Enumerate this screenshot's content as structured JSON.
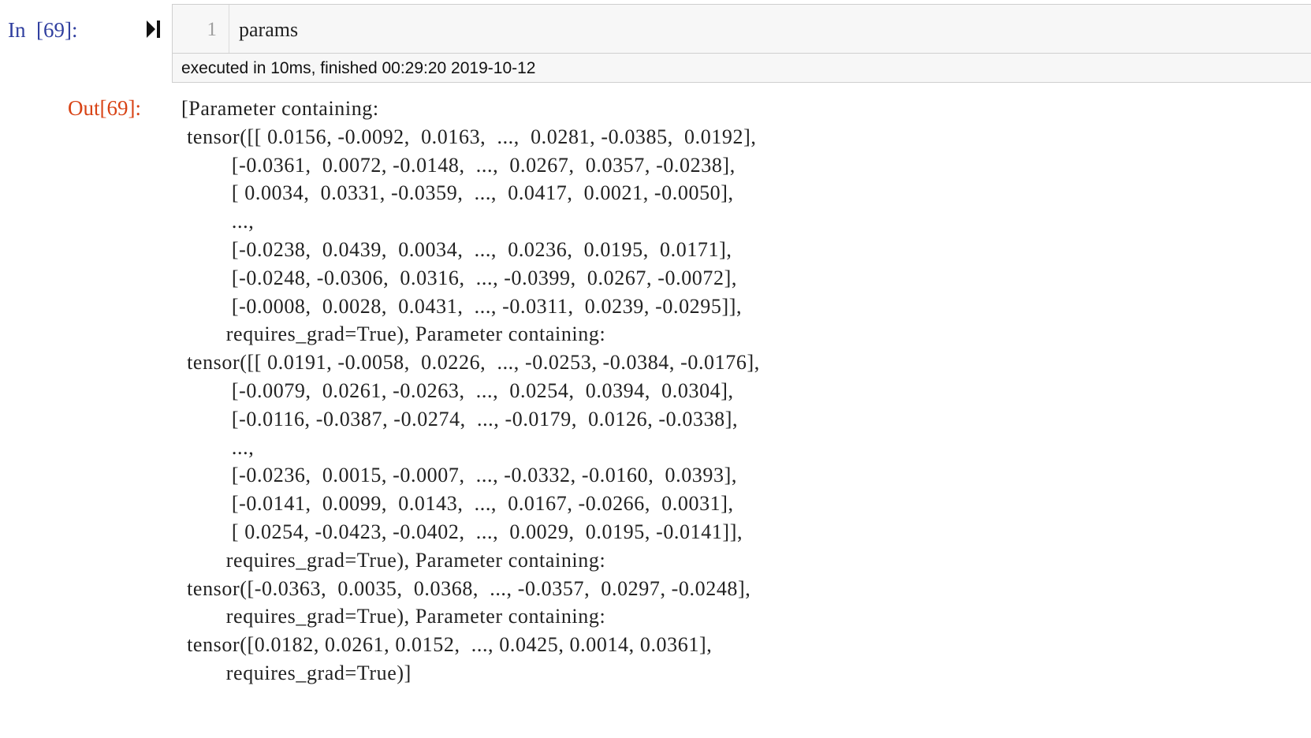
{
  "cell": {
    "in_prompt": "In  [69]:",
    "run_icon": "run-cell-icon",
    "line_number": "1",
    "code": "params",
    "execution_info": "executed in 10ms, finished 00:29:20 2019-10-12",
    "out_prompt": "Out[69]:",
    "output_lines": [
      "[Parameter containing:",
      " tensor([[ 0.0156, -0.0092,  0.0163,  ...,  0.0281, -0.0385,  0.0192],",
      "         [-0.0361,  0.0072, -0.0148,  ...,  0.0267,  0.0357, -0.0238],",
      "         [ 0.0034,  0.0331, -0.0359,  ...,  0.0417,  0.0021, -0.0050],",
      "         ...,",
      "         [-0.0238,  0.0439,  0.0034,  ...,  0.0236,  0.0195,  0.0171],",
      "         [-0.0248, -0.0306,  0.0316,  ..., -0.0399,  0.0267, -0.0072],",
      "         [-0.0008,  0.0028,  0.0431,  ..., -0.0311,  0.0239, -0.0295]],",
      "        requires_grad=True), Parameter containing:",
      " tensor([[ 0.0191, -0.0058,  0.0226,  ..., -0.0253, -0.0384, -0.0176],",
      "         [-0.0079,  0.0261, -0.0263,  ...,  0.0254,  0.0394,  0.0304],",
      "         [-0.0116, -0.0387, -0.0274,  ..., -0.0179,  0.0126, -0.0338],",
      "         ...,",
      "         [-0.0236,  0.0015, -0.0007,  ..., -0.0332, -0.0160,  0.0393],",
      "         [-0.0141,  0.0099,  0.0143,  ...,  0.0167, -0.0266,  0.0031],",
      "         [ 0.0254, -0.0423, -0.0402,  ...,  0.0029,  0.0195, -0.0141]],",
      "        requires_grad=True), Parameter containing:",
      " tensor([-0.0363,  0.0035,  0.0368,  ..., -0.0357,  0.0297, -0.0248],",
      "        requires_grad=True), Parameter containing:",
      " tensor([0.0182, 0.0261, 0.0152,  ..., 0.0425, 0.0014, 0.0361],",
      "        requires_grad=True)]"
    ]
  },
  "colors": {
    "in_prompt": "#303f9f",
    "out_prompt": "#d84315",
    "input_background": "#f7f7f7",
    "border": "#cfcfcf"
  }
}
